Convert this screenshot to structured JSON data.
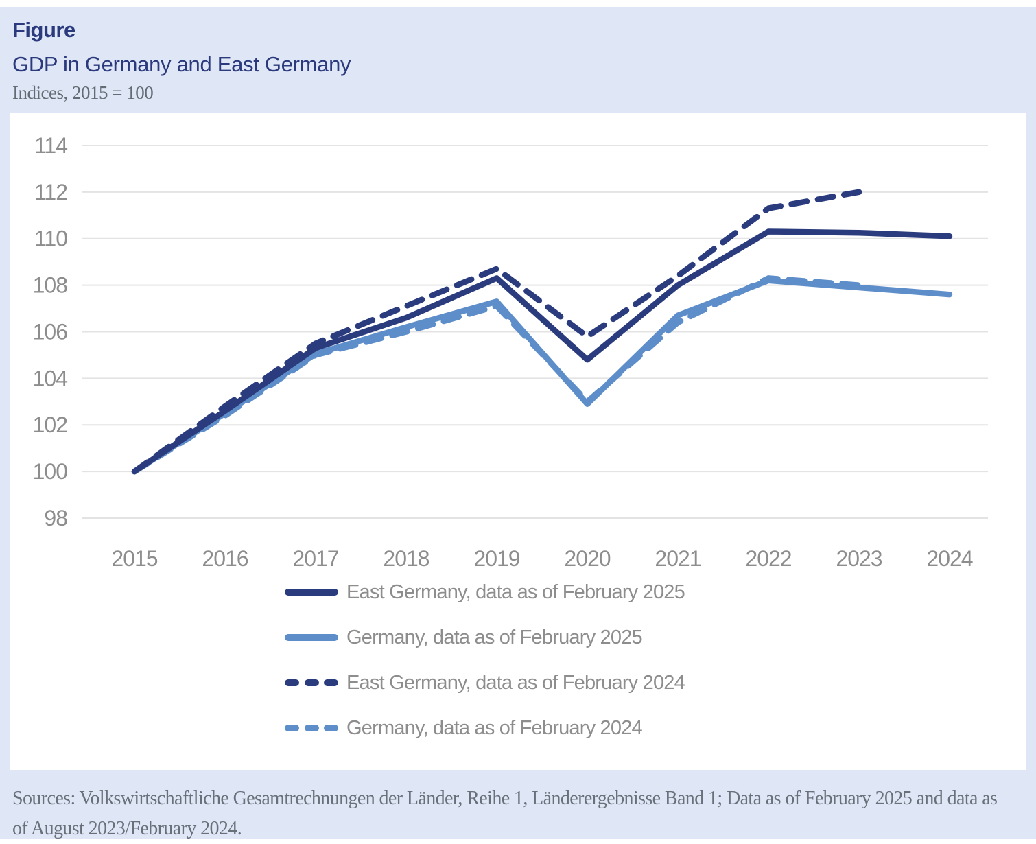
{
  "header": {
    "kicker": "Figure",
    "title": "GDP in Germany and East Germany",
    "unit_note": "Indices, 2015 = 100"
  },
  "footer": {
    "sources": "Sources: Volkswirtschaftliche Gesamtrechnungen der Länder, Reihe 1, Länderergebnisse Band 1; Data as of February 2025 and data as of August 2023/February 2024."
  },
  "colors": {
    "page_background": "#dfe7f7",
    "panel_background": "#ffffff",
    "title_navy": "#2b3a7d",
    "east_germany_navy": "#2b3c7e",
    "germany_light_blue": "#5e8ec9",
    "axis_text_gray": "#8d8d8d",
    "gridline_gray": "#e3e3e3",
    "footer_text_gray": "#69707a"
  },
  "chart_data": {
    "type": "line",
    "x": [
      2015,
      2016,
      2017,
      2018,
      2019,
      2020,
      2021,
      2022,
      2023,
      2024
    ],
    "ylim": [
      98,
      114
    ],
    "yticks": [
      98,
      100,
      102,
      104,
      106,
      108,
      110,
      112,
      114
    ],
    "grid": true,
    "legend_position": "bottom",
    "title": "GDP in Germany and East Germany",
    "xlabel": "",
    "ylabel": "Indices, 2015 = 100",
    "series": [
      {
        "name": "East Germany, data as of February 2025",
        "color": "#2b3c7e",
        "style": "solid",
        "values": [
          100,
          102.6,
          105.3,
          106.6,
          108.3,
          104.8,
          108.0,
          110.3,
          110.25,
          110.1
        ]
      },
      {
        "name": "Germany, data as of February 2025",
        "color": "#5e8ec9",
        "style": "solid",
        "values": [
          100,
          102.5,
          105.05,
          106.2,
          107.3,
          102.9,
          106.7,
          108.2,
          107.9,
          107.6
        ]
      },
      {
        "name": "East Germany, data as of February 2024",
        "color": "#2b3c7e",
        "style": "dashed",
        "values": [
          100,
          102.8,
          105.5,
          107.1,
          108.7,
          105.8,
          108.4,
          111.3,
          112.0,
          null
        ]
      },
      {
        "name": "Germany, data as of February 2024",
        "color": "#5e8ec9",
        "style": "dashed",
        "values": [
          100,
          102.4,
          105.0,
          106.0,
          107.1,
          103.0,
          106.4,
          108.3,
          108.0,
          null
        ]
      }
    ]
  }
}
